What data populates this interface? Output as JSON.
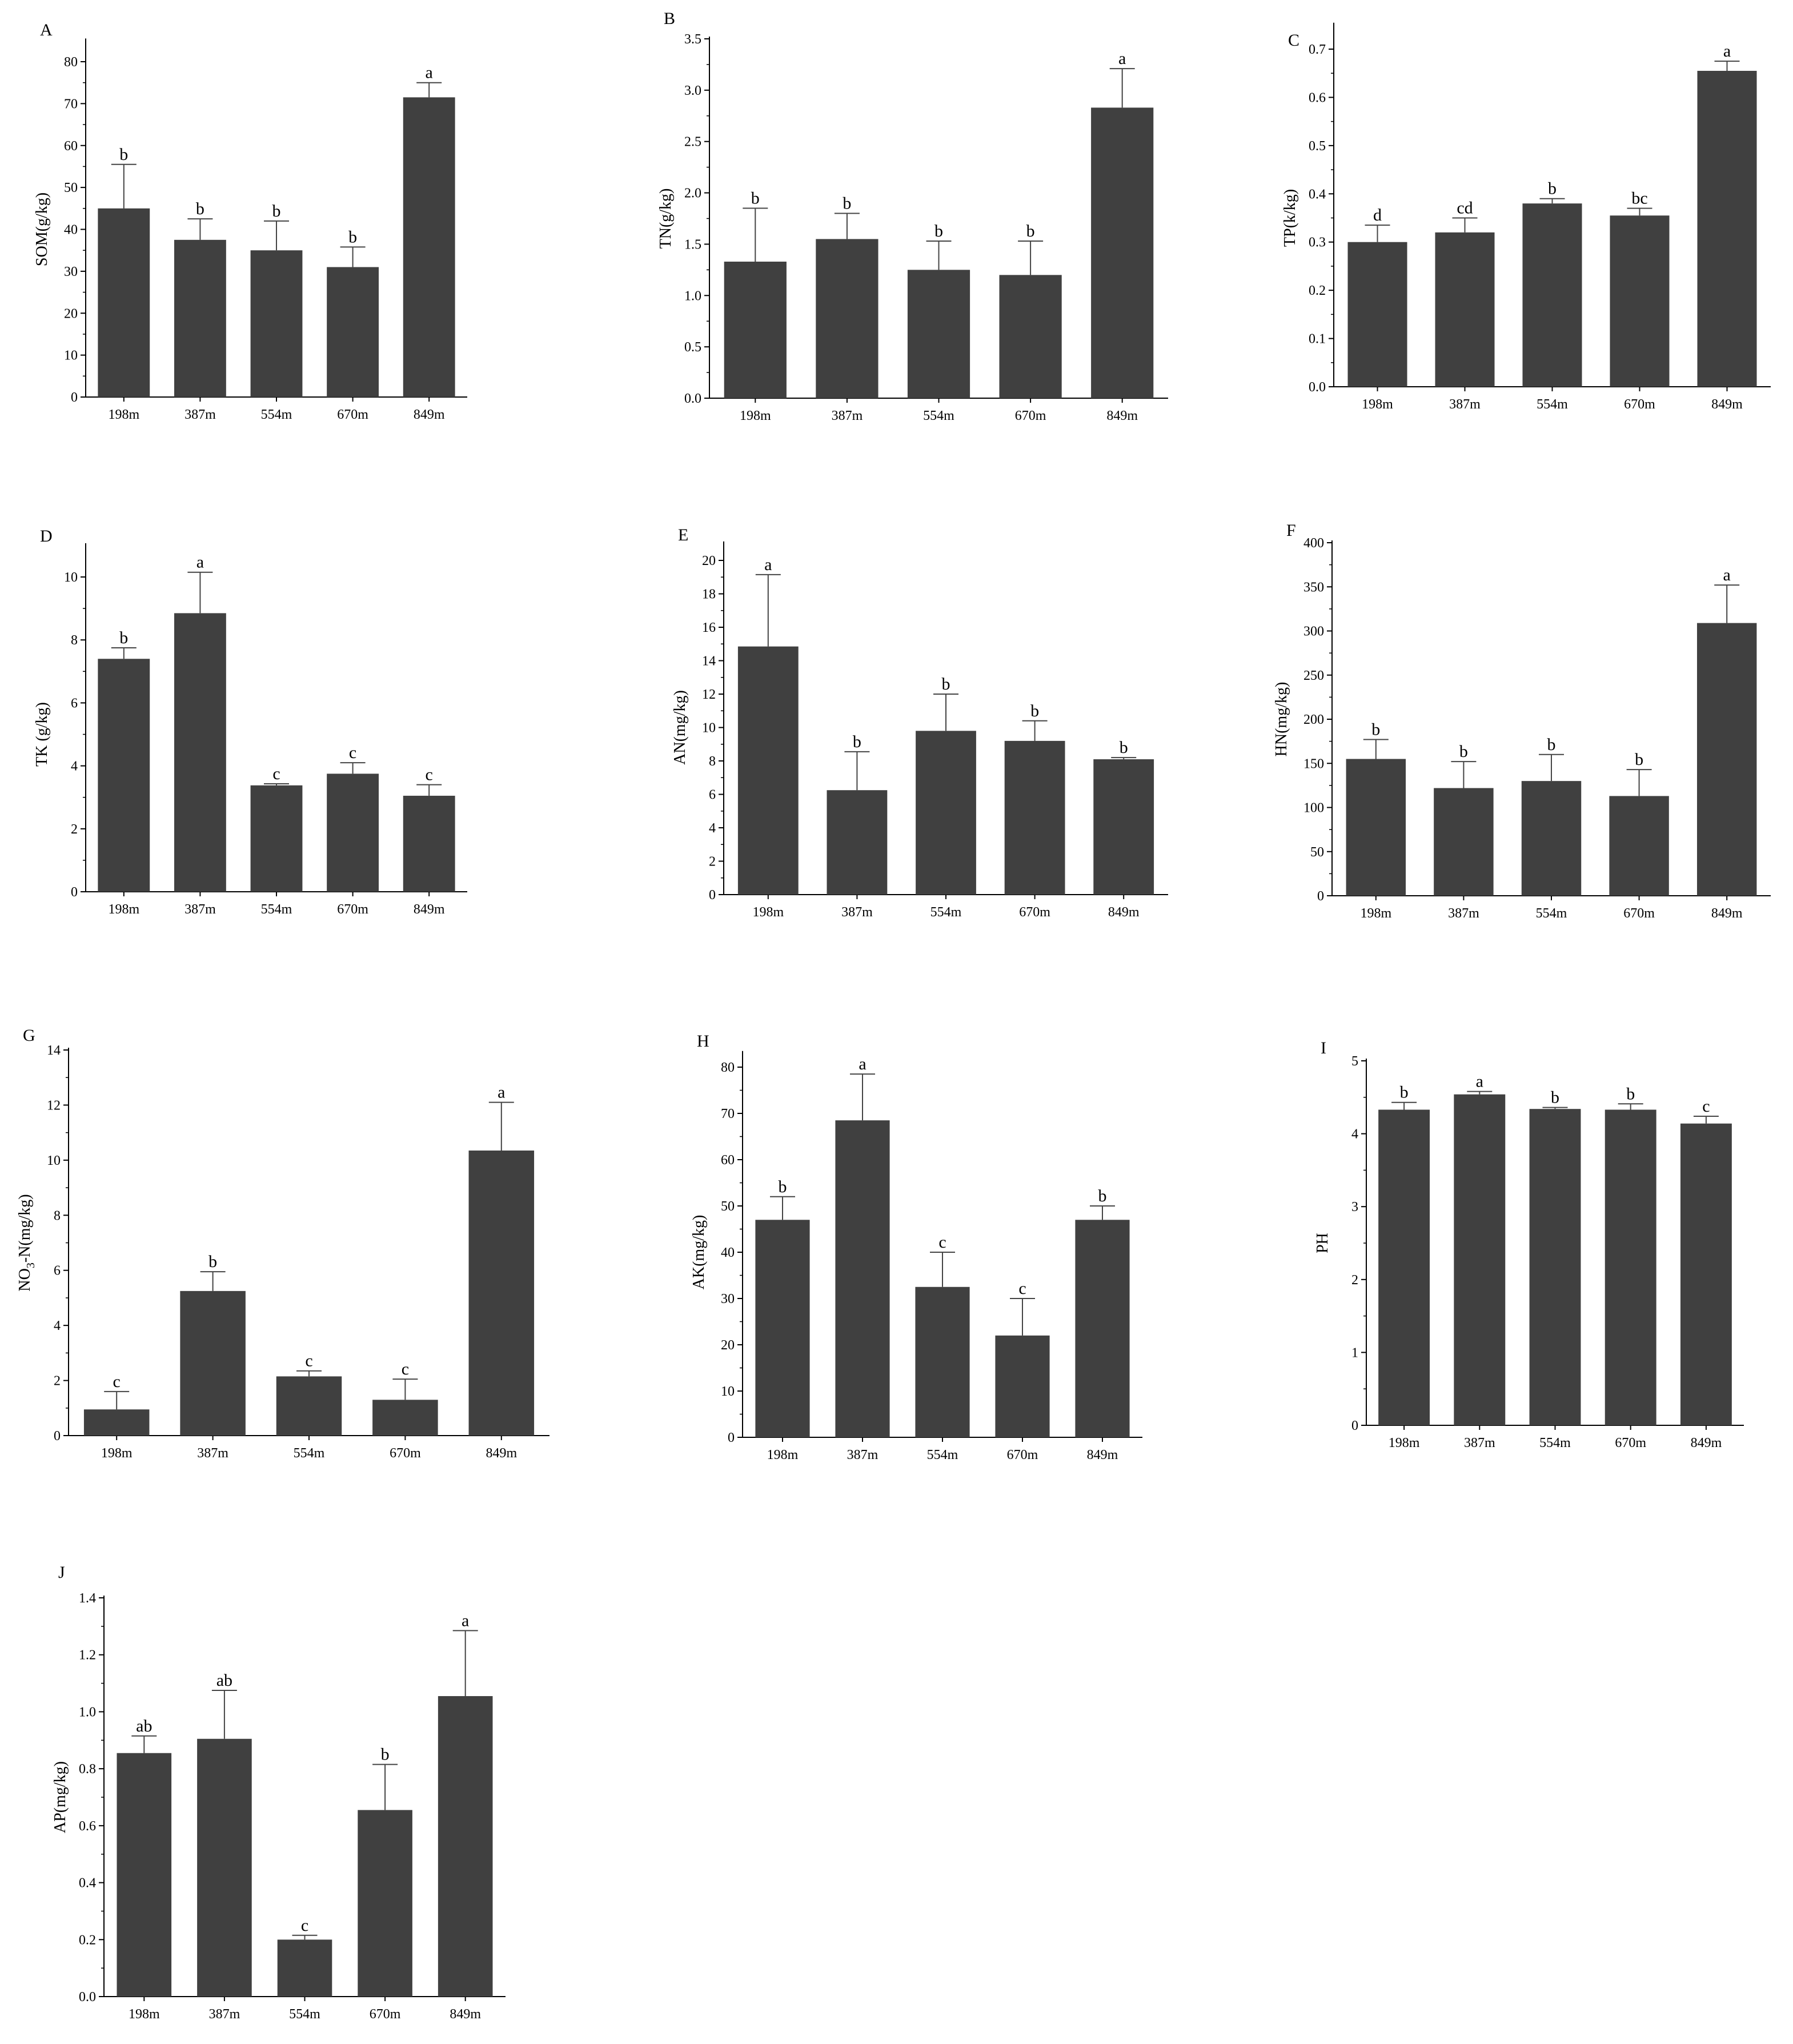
{
  "chart_data": [
    {
      "panel": "A",
      "type": "bar",
      "categories": [
        "198m",
        "387m",
        "554m",
        "670m",
        "849m"
      ],
      "values": [
        45,
        37.5,
        35,
        31,
        71.5
      ],
      "errors": [
        10.5,
        5,
        7,
        4.8,
        3.5
      ],
      "letters": [
        "b",
        "b",
        "b",
        "b",
        "a"
      ],
      "ylabel": "SOM(g/kg)",
      "ylim": [
        0,
        85
      ],
      "yticks": [
        0,
        10,
        20,
        30,
        40,
        50,
        60,
        70,
        80
      ],
      "ytick_labels": [
        "0",
        "10",
        "20",
        "30",
        "40",
        "50",
        "60",
        "70",
        "80"
      ],
      "color": "#404040"
    },
    {
      "panel": "B",
      "type": "bar",
      "categories": [
        "198m",
        "387m",
        "554m",
        "670m",
        "849m"
      ],
      "values": [
        1.33,
        1.55,
        1.25,
        1.2,
        2.83
      ],
      "errors": [
        0.52,
        0.25,
        0.28,
        0.33,
        0.38
      ],
      "letters": [
        "b",
        "b",
        "b",
        "b",
        "a"
      ],
      "ylabel": "TN(g/kg)",
      "ylim": [
        0,
        3.5
      ],
      "yticks": [
        0,
        0.5,
        1,
        1.5,
        2,
        2.5,
        3,
        3.5
      ],
      "ytick_labels": [
        "0.0",
        "0.5",
        "1.0",
        "1.5",
        "2.0",
        "2.5",
        "3.0",
        "3.5"
      ],
      "color": "#404040"
    },
    {
      "panel": "C",
      "type": "bar",
      "categories": [
        "198m",
        "387m",
        "554m",
        "670m",
        "849m"
      ],
      "values": [
        0.3,
        0.32,
        0.38,
        0.355,
        0.655
      ],
      "errors": [
        0.035,
        0.03,
        0.01,
        0.015,
        0.02
      ],
      "letters": [
        "d",
        "cd",
        "b",
        "bc",
        "a"
      ],
      "ylabel": "TP(k/kg)",
      "ylim": [
        0,
        0.75
      ],
      "yticks": [
        0,
        0.1,
        0.2,
        0.3,
        0.4,
        0.5,
        0.6,
        0.7
      ],
      "ytick_labels": [
        "0.0",
        "0.1",
        "0.2",
        "0.3",
        "0.4",
        "0.5",
        "0.6",
        "0.7"
      ],
      "color": "#404040"
    },
    {
      "panel": "D",
      "type": "bar",
      "categories": [
        "198m",
        "387m",
        "554m",
        "670m",
        "849m"
      ],
      "values": [
        7.4,
        8.85,
        3.38,
        3.75,
        3.05
      ],
      "errors": [
        0.35,
        1.3,
        0.05,
        0.35,
        0.35
      ],
      "letters": [
        "b",
        "a",
        "c",
        "c",
        "c"
      ],
      "ylabel": "TK (g/kg)",
      "ylim": [
        0,
        11
      ],
      "yticks": [
        0,
        2,
        4,
        6,
        8,
        10
      ],
      "ytick_labels": [
        "0",
        "2",
        "4",
        "6",
        "8",
        "10"
      ],
      "color": "#404040"
    },
    {
      "panel": "E",
      "type": "bar",
      "categories": [
        "198m",
        "387m",
        "554m",
        "670m",
        "849m"
      ],
      "values": [
        14.85,
        6.25,
        9.8,
        9.2,
        8.1
      ],
      "errors": [
        4.3,
        2.3,
        2.2,
        1.2,
        0.1
      ],
      "letters": [
        "a",
        "b",
        "b",
        "b",
        "b"
      ],
      "ylabel": "AN(mg/kg)",
      "ylim": [
        0,
        21
      ],
      "yticks": [
        0,
        2,
        4,
        6,
        8,
        10,
        12,
        14,
        16,
        18,
        20
      ],
      "ytick_labels": [
        "0",
        "2",
        "4",
        "6",
        "8",
        "10",
        "12",
        "14",
        "16",
        "18",
        "20"
      ],
      "color": "#404040"
    },
    {
      "panel": "F",
      "type": "bar",
      "categories": [
        "198m",
        "387m",
        "554m",
        "670m",
        "849m"
      ],
      "values": [
        155,
        122,
        130,
        113,
        309
      ],
      "errors": [
        22,
        30,
        30,
        30,
        43
      ],
      "letters": [
        "b",
        "b",
        "b",
        "b",
        "a"
      ],
      "ylabel": "HN(mg/kg)",
      "ylim": [
        0,
        400
      ],
      "yticks": [
        0,
        50,
        100,
        150,
        200,
        250,
        300,
        350,
        400
      ],
      "ytick_labels": [
        "0",
        "50",
        "100",
        "150",
        "200",
        "250",
        "300",
        "350",
        "400"
      ],
      "color": "#404040"
    },
    {
      "panel": "G",
      "type": "bar",
      "categories": [
        "198m",
        "387m",
        "554m",
        "670m",
        "849m"
      ],
      "values": [
        0.95,
        5.25,
        2.15,
        1.3,
        10.35
      ],
      "errors": [
        0.65,
        0.7,
        0.2,
        0.75,
        1.75
      ],
      "letters": [
        "c",
        "b",
        "c",
        "c",
        "a"
      ],
      "ylabel_main": "NO",
      "ylabel_sub": "3",
      "ylabel_rest": "-N(mg/kg)",
      "ylim": [
        0,
        14
      ],
      "yticks": [
        0,
        2,
        4,
        6,
        8,
        10,
        12,
        14
      ],
      "ytick_labels": [
        "0",
        "2",
        "4",
        "6",
        "8",
        "10",
        "12",
        "14"
      ],
      "color": "#404040"
    },
    {
      "panel": "H",
      "type": "bar",
      "categories": [
        "198m",
        "387m",
        "554m",
        "670m",
        "849m"
      ],
      "values": [
        47,
        68.5,
        32.5,
        22,
        47
      ],
      "errors": [
        5,
        10,
        7.5,
        8,
        3
      ],
      "letters": [
        "b",
        "a",
        "c",
        "c",
        "b"
      ],
      "ylabel": "AK(mg/kg)",
      "ylim": [
        0,
        83
      ],
      "yticks": [
        0,
        10,
        20,
        30,
        40,
        50,
        60,
        70,
        80
      ],
      "ytick_labels": [
        "0",
        "10",
        "20",
        "30",
        "40",
        "50",
        "60",
        "70",
        "80"
      ],
      "color": "#404040"
    },
    {
      "panel": "I",
      "type": "bar",
      "categories": [
        "198m",
        "387m",
        "554m",
        "670m",
        "849m"
      ],
      "values": [
        4.33,
        4.54,
        4.34,
        4.33,
        4.14
      ],
      "errors": [
        0.1,
        0.04,
        0.02,
        0.08,
        0.1
      ],
      "letters": [
        "b",
        "a",
        "b",
        "b",
        "c"
      ],
      "ylabel": "PH",
      "ylim": [
        0,
        5
      ],
      "yticks": [
        0,
        1,
        2,
        3,
        4,
        5
      ],
      "ytick_labels": [
        "0",
        "1",
        "2",
        "3",
        "4",
        "5"
      ],
      "color": "#404040"
    },
    {
      "panel": "J",
      "type": "bar",
      "categories": [
        "198m",
        "387m",
        "554m",
        "670m",
        "849m"
      ],
      "values": [
        0.855,
        0.905,
        0.2,
        0.655,
        1.055
      ],
      "errors": [
        0.06,
        0.17,
        0.015,
        0.16,
        0.23
      ],
      "letters": [
        "ab",
        "ab",
        "c",
        "b",
        "a"
      ],
      "ylabel": "AP(mg/kg)",
      "ylim": [
        0,
        1.4
      ],
      "yticks": [
        0,
        0.2,
        0.4,
        0.6,
        0.8,
        1.0,
        1.2,
        1.4
      ],
      "ytick_labels": [
        "0.0",
        "0.2",
        "0.4",
        "0.6",
        "0.8",
        "1.0",
        "1.2",
        "1.4"
      ],
      "color": "#404040"
    }
  ]
}
